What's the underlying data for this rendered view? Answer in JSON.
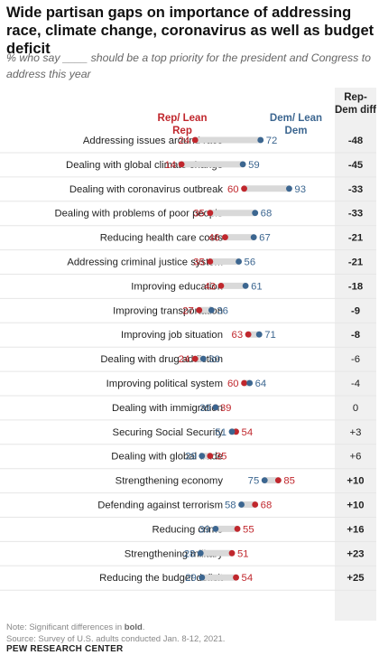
{
  "title": "Wide partisan gaps on importance of addressing race, climate change, coronavirus as well as budget deficit",
  "subtitle": "% who say ____ should be a top priority for the president and Congress to address this year",
  "headers": {
    "rep": "Rep/ Lean Rep",
    "dem": "Dem/ Lean Dem",
    "diff": "Rep- Dem diff"
  },
  "colors": {
    "rep": "#c0272d",
    "dem": "#3c6690",
    "bar": "#d9d9d9",
    "diff_bg": "#f0f0f0"
  },
  "note_prefix": "Note: Significant differences in ",
  "note_bold": "bold",
  "note_suffix": ".",
  "source": "Source: Survey of U.S. adults conducted Jan. 8-12, 2021.",
  "brand": "PEW RESEARCH CENTER",
  "chart_data": {
    "type": "dot",
    "xlim": [
      0,
      100
    ],
    "series_names": [
      "Rep/Lean Rep",
      "Dem/Lean Dem"
    ],
    "rows": [
      {
        "label": "Addressing issues around race",
        "rep": 24,
        "dem": 72,
        "diff": "-48",
        "significant": true
      },
      {
        "label": "Dealing with global climate change",
        "rep": 14,
        "dem": 59,
        "diff": "-45",
        "significant": true
      },
      {
        "label": "Dealing with coronavirus outbreak",
        "rep": 60,
        "dem": 93,
        "diff": "-33",
        "significant": true
      },
      {
        "label": "Dealing with problems of poor people",
        "rep": 35,
        "dem": 68,
        "diff": "-33",
        "significant": true
      },
      {
        "label": "Reducing health care costs",
        "rep": 46,
        "dem": 67,
        "diff": "-21",
        "significant": true
      },
      {
        "label": "Addressing criminal justice system",
        "rep": 35,
        "dem": 56,
        "diff": "-21",
        "significant": true
      },
      {
        "label": "Improving education",
        "rep": 43,
        "dem": 61,
        "diff": "-18",
        "significant": true
      },
      {
        "label": "Improving transportation",
        "rep": 27,
        "dem": 36,
        "diff": "-9",
        "significant": true
      },
      {
        "label": "Improving job situation",
        "rep": 63,
        "dem": 71,
        "diff": "-8",
        "significant": true
      },
      {
        "label": "Dealing with drug addiction",
        "rep": 24,
        "dem": 30,
        "diff": "-6",
        "significant": false
      },
      {
        "label": "Improving political system",
        "rep": 60,
        "dem": 64,
        "diff": "-4",
        "significant": false
      },
      {
        "label": "Dealing with immigration",
        "rep": 39,
        "dem": 39,
        "diff": "0",
        "significant": false
      },
      {
        "label": "Securing Social Security",
        "rep": 54,
        "dem": 51,
        "diff": "+3",
        "significant": false
      },
      {
        "label": "Dealing with global trade",
        "rep": 35,
        "dem": 29,
        "diff": "+6",
        "significant": false
      },
      {
        "label": "Strengthening economy",
        "rep": 85,
        "dem": 75,
        "diff": "+10",
        "significant": true
      },
      {
        "label": "Defending against terrorism",
        "rep": 68,
        "dem": 58,
        "diff": "+10",
        "significant": true
      },
      {
        "label": "Reducing crime",
        "rep": 55,
        "dem": 39,
        "diff": "+16",
        "significant": true
      },
      {
        "label": "Strengthening military",
        "rep": 51,
        "dem": 28,
        "diff": "+23",
        "significant": true
      },
      {
        "label": "Reducing the budget deficit",
        "rep": 54,
        "dem": 29,
        "diff": "+25",
        "significant": true
      }
    ]
  }
}
